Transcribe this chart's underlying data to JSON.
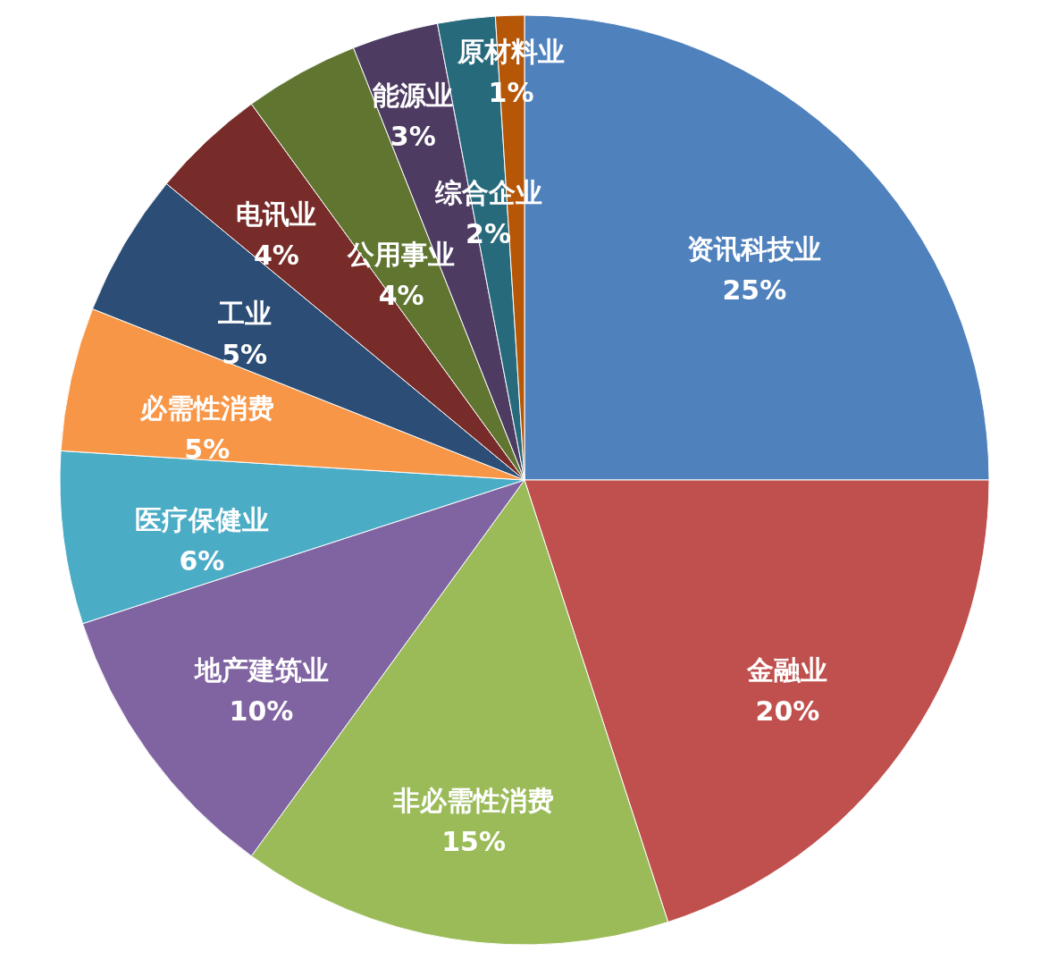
{
  "chart_data": {
    "type": "pie",
    "categories": [
      "资讯科技业",
      "金融业",
      "非必需性消费",
      "地产建筑业",
      "医疗保健业",
      "必需性消费",
      "工业",
      "电讯业",
      "公用事业",
      "能源业",
      "综合企业",
      "原材料业"
    ],
    "values": [
      25,
      20,
      15,
      10,
      6,
      5,
      5,
      4,
      4,
      3,
      2,
      1
    ],
    "value_labels": [
      "25%",
      "20%",
      "15%",
      "10%",
      "6%",
      "5%",
      "5%",
      "4%",
      "4%",
      "3%",
      "2%",
      "1%"
    ],
    "colors": [
      "#4f81bd",
      "#c0504d",
      "#9bbb59",
      "#8064a2",
      "#4bacc6",
      "#f79646",
      "#2c4d75",
      "#772c2a",
      "#5f7530",
      "#4d3b62",
      "#276a7c",
      "#b65708"
    ]
  }
}
